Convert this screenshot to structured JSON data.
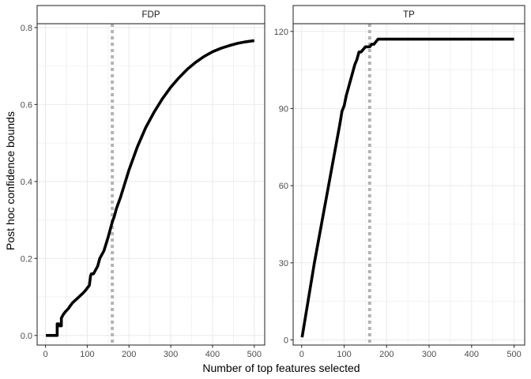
{
  "chart_data": {
    "type": "line",
    "ylabel": "Post hoc confidence bounds",
    "xlabel": "Number of top features selected",
    "grid": true,
    "colors": {
      "line": "#000000",
      "reference": "#b3b3b3",
      "grid": "#ebebeb",
      "strip_fill": "#ffffff",
      "border": "#333333"
    },
    "panels": [
      {
        "strip": "FDP",
        "xlim": [
          -20,
          525
        ],
        "ylim": [
          -0.025,
          0.81
        ],
        "x_ticks": [
          0,
          100,
          200,
          300,
          400,
          500
        ],
        "x_tick_labels": [
          "0",
          "100",
          "200",
          "300",
          "400",
          "500"
        ],
        "y_ticks": [
          0.0,
          0.2,
          0.4,
          0.6,
          0.8
        ],
        "y_tick_labels": [
          "0.0",
          "0.2",
          "0.4",
          "0.6",
          "0.8"
        ],
        "reference_x": 160,
        "series": [
          {
            "x": [
              1,
              28,
              28,
              32,
              32,
              38,
              38,
              43,
              48,
              55,
              60,
              65,
              70,
              75,
              80,
              85,
              90,
              95,
              100,
              105,
              108,
              110,
              115,
              120,
              125,
              130,
              140,
              150,
              155,
              160,
              165,
              170,
              175,
              180,
              190,
              200,
              220,
              240,
              260,
              280,
              300,
              320,
              340,
              360,
              380,
              400,
              420,
              440,
              460,
              480,
              500
            ],
            "y": [
              0.0,
              0.0,
              0.03,
              0.03,
              0.025,
              0.025,
              0.045,
              0.055,
              0.062,
              0.07,
              0.078,
              0.085,
              0.09,
              0.095,
              0.1,
              0.105,
              0.11,
              0.116,
              0.123,
              0.13,
              0.155,
              0.16,
              0.16,
              0.17,
              0.18,
              0.2,
              0.22,
              0.255,
              0.275,
              0.295,
              0.31,
              0.33,
              0.345,
              0.36,
              0.395,
              0.43,
              0.49,
              0.54,
              0.58,
              0.615,
              0.645,
              0.67,
              0.692,
              0.71,
              0.725,
              0.737,
              0.746,
              0.753,
              0.759,
              0.763,
              0.766
            ]
          }
        ]
      },
      {
        "strip": "TP",
        "xlim": [
          -20,
          525
        ],
        "ylim": [
          -2,
          123
        ],
        "x_ticks": [
          0,
          100,
          200,
          300,
          400,
          500
        ],
        "x_tick_labels": [
          "0",
          "100",
          "200",
          "300",
          "400",
          "500"
        ],
        "y_ticks": [
          0,
          30,
          60,
          90,
          120
        ],
        "y_tick_labels": [
          "0",
          "30",
          "60",
          "90",
          "120"
        ],
        "reference_x": 160,
        "series": [
          {
            "x": [
              1,
              10,
              20,
              30,
              40,
              50,
              60,
              70,
              80,
              90,
              95,
              100,
              105,
              110,
              115,
              120,
              125,
              130,
              135,
              140,
              145,
              150,
              155,
              160,
              165,
              170,
              175,
              180,
              185,
              190,
              200,
              250,
              300,
              350,
              400,
              450,
              500
            ],
            "y": [
              1,
              10,
              20,
              30,
              39,
              48,
              57,
              66,
              75,
              84,
              89,
              91,
              95,
              98,
              101,
              104,
              107,
              109,
              112,
              112,
              113,
              114,
              114,
              114,
              115,
              115,
              116,
              117,
              117,
              117,
              117,
              117,
              117,
              117,
              117,
              117,
              117
            ]
          }
        ]
      }
    ]
  }
}
